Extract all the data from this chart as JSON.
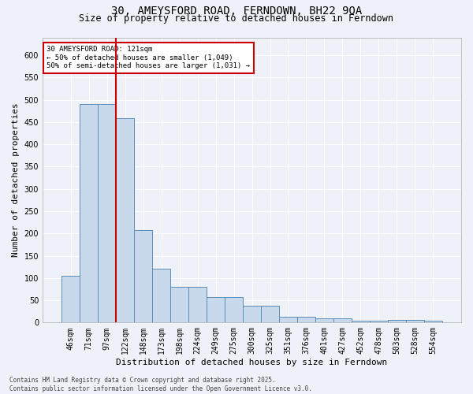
{
  "title": "30, AMEYSFORD ROAD, FERNDOWN, BH22 9QA",
  "subtitle": "Size of property relative to detached houses in Ferndown",
  "xlabel": "Distribution of detached houses by size in Ferndown",
  "ylabel": "Number of detached properties",
  "footer_line1": "Contains HM Land Registry data © Crown copyright and database right 2025.",
  "footer_line2": "Contains public sector information licensed under the Open Government Licence v3.0.",
  "categories": [
    "46sqm",
    "71sqm",
    "97sqm",
    "122sqm",
    "148sqm",
    "173sqm",
    "198sqm",
    "224sqm",
    "249sqm",
    "275sqm",
    "300sqm",
    "325sqm",
    "351sqm",
    "376sqm",
    "401sqm",
    "427sqm",
    "452sqm",
    "478sqm",
    "503sqm",
    "528sqm",
    "554sqm"
  ],
  "values": [
    105,
    490,
    490,
    458,
    207,
    121,
    81,
    81,
    57,
    57,
    38,
    38,
    13,
    13,
    10,
    10,
    4,
    4,
    6,
    6,
    5
  ],
  "bar_color": "#c9d9ec",
  "bar_edge_color": "#5b8db8",
  "vline_color": "#cc0000",
  "vline_position": 2.5,
  "annotation_text": "30 AMEYSFORD ROAD: 121sqm\n← 50% of detached houses are smaller (1,049)\n50% of semi-detached houses are larger (1,031) →",
  "ylim": [
    0,
    640
  ],
  "yticks": [
    0,
    50,
    100,
    150,
    200,
    250,
    300,
    350,
    400,
    450,
    500,
    550,
    600
  ],
  "background_color": "#eef2f8",
  "grid_color": "#ffffff",
  "title_fontsize": 10,
  "subtitle_fontsize": 8.5,
  "axis_label_fontsize": 8,
  "tick_fontsize": 7,
  "footer_fontsize": 5.5,
  "annotation_fontsize": 6.5
}
